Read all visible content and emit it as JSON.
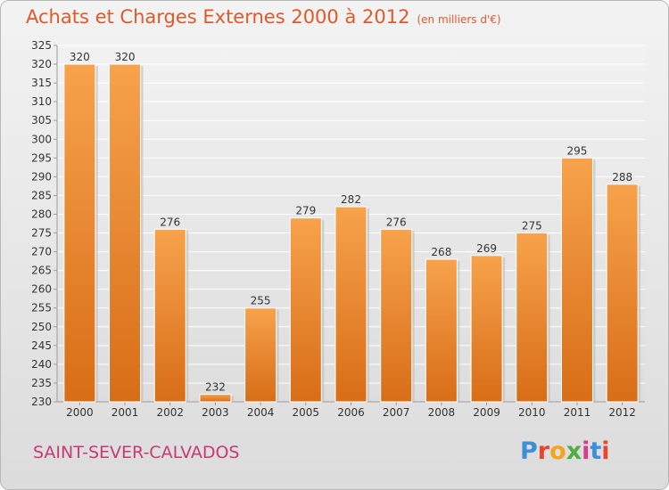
{
  "header": {
    "title": "Achats et Charges Externes 2000 à 2012",
    "subtitle": "(en milliers d'€)"
  },
  "footer": {
    "commune": "SAINT-SEVER-CALVADOS",
    "logo": {
      "text": "Proxiti",
      "colors": [
        "#3c8fd9",
        "#e8442e",
        "#f2a51a",
        "#4fae3c",
        "#d93a8c",
        "#3c8fd9",
        "#e8442e"
      ]
    }
  },
  "chart_data": {
    "type": "bar",
    "categories": [
      "2000",
      "2001",
      "2002",
      "2003",
      "2004",
      "2005",
      "2006",
      "2007",
      "2008",
      "2009",
      "2010",
      "2011",
      "2012"
    ],
    "values": [
      320,
      320,
      276,
      232,
      255,
      279,
      282,
      276,
      268,
      269,
      275,
      295,
      288
    ],
    "ylim": [
      230,
      325
    ],
    "ytick_step": 5,
    "grid": true,
    "bar_color": "#f0923a",
    "data_labels": true
  }
}
